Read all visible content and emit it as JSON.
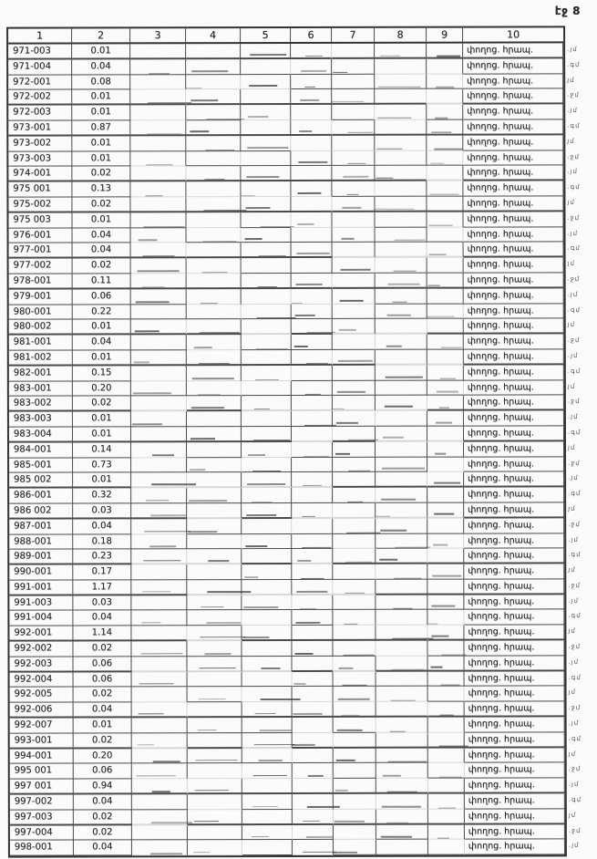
{
  "page_label": "էջ 8",
  "table": {
    "headers": [
      "1",
      "2",
      "3",
      "4",
      "5",
      "6",
      "7",
      "8",
      "9",
      "10"
    ],
    "rows": [
      {
        "code": "971-003",
        "value": "0.01",
        "note": "փողոց. հրապ.",
        "mark": ".յմ"
      },
      {
        "code": "971-004",
        "value": "0.04",
        "note": "փողոց. հրապ.",
        "mark": ".գմ"
      },
      {
        "code": "972-001",
        "value": "0.08",
        "note": "փողոց. հրապ.",
        "mark": "յմ"
      },
      {
        "code": "972-002",
        "value": "0.01",
        "note": "փողոց. հրապ.",
        "mark": ".ջմ"
      },
      {
        "code": "972-003",
        "value": "0.01",
        "note": "փողոց. հրապ.",
        "mark": ".յմ"
      },
      {
        "code": "973-001",
        "value": "0.87",
        "note": "փողոց. հրապ.",
        "mark": ".գմ"
      },
      {
        "code": "973-002",
        "value": "0.01",
        "note": "փողոց. հրապ.",
        "mark": "յմ"
      },
      {
        "code": "973-003",
        "value": "0.01",
        "note": "փողոց. հրապ.",
        "mark": ".ջմ"
      },
      {
        "code": "974-001",
        "value": "0.02",
        "note": "փողոց. հրապ.",
        "mark": ".յմ"
      },
      {
        "code": "975 001",
        "value": "0.13",
        "note": "փողոց. հրապ.",
        "mark": ".գմ"
      },
      {
        "code": "975-002",
        "value": "0.02",
        "note": "փողոց. հրապ.",
        "mark": "յմ"
      },
      {
        "code": "975 003",
        "value": "0.01",
        "note": "փողոց. հրապ.",
        "mark": ".ջմ"
      },
      {
        "code": "976-001",
        "value": "0.04",
        "note": "փողոց. հրապ.",
        "mark": ".յմ"
      },
      {
        "code": "977-001",
        "value": "0.04",
        "note": "փողոց. հրապ.",
        "mark": ".գմ"
      },
      {
        "code": "977-002",
        "value": "0.02",
        "note": "փողոց. հրապ.",
        "mark": "յմ"
      },
      {
        "code": "978-001",
        "value": "0.11",
        "note": "փողոց. հրապ.",
        "mark": ".ջմ"
      },
      {
        "code": "979-001",
        "value": "0.06",
        "note": "փողոց. հրապ.",
        "mark": ".յմ"
      },
      {
        "code": "980-001",
        "value": "0.22",
        "note": "փողոց. հրապ.",
        "mark": ".գմ"
      },
      {
        "code": "980-002",
        "value": "0.01",
        "note": "փողոց. հրապ.",
        "mark": "յմ"
      },
      {
        "code": "981-001",
        "value": "0.04",
        "note": "փողոց. հրապ.",
        "mark": ".ջմ"
      },
      {
        "code": "981-002",
        "value": "0.01",
        "note": "փողոց. հրապ.",
        "mark": ".յմ"
      },
      {
        "code": "982-001",
        "value": "0.15",
        "note": "փողոց. հրապ.",
        "mark": ".գմ"
      },
      {
        "code": "983-001",
        "value": "0.20",
        "note": "փողոց. հրապ.",
        "mark": "յմ"
      },
      {
        "code": "983-002",
        "value": "0.02",
        "note": "փողոց. հրապ.",
        "mark": ".ջմ"
      },
      {
        "code": "983-003",
        "value": "0.01",
        "note": "փողոց. հրապ.",
        "mark": ".յմ"
      },
      {
        "code": "983-004",
        "value": "0.01",
        "note": "փողոց. հրապ.",
        "mark": ".գմ"
      },
      {
        "code": "984-001",
        "value": "0.14",
        "note": "փողոց. հրապ.",
        "mark": "յմ"
      },
      {
        "code": "985-001",
        "value": "0.73",
        "note": "փողոց. հրապ.",
        "mark": ".ջմ"
      },
      {
        "code": "985 002",
        "value": "0.01",
        "note": "փողոց. հրապ.",
        "mark": ".յմ"
      },
      {
        "code": "986-001",
        "value": "0.32",
        "note": "փողոց. հրապ.",
        "mark": ".գմ"
      },
      {
        "code": "986 002",
        "value": "0.03",
        "note": "փողոց. հրապ.",
        "mark": "յմ"
      },
      {
        "code": "987-001",
        "value": "0.04",
        "note": "փողոց. հրապ.",
        "mark": ".ջմ"
      },
      {
        "code": "988-001",
        "value": "0.18",
        "note": "փողոց. հրապ.",
        "mark": ".յմ"
      },
      {
        "code": "989-001",
        "value": "0.23",
        "note": "փողոց. հրապ.",
        "mark": ".գմ"
      },
      {
        "code": "990-001",
        "value": "0.17",
        "note": "փողոց. հրապ.",
        "mark": "յմ"
      },
      {
        "code": "991-001",
        "value": "1.17",
        "note": "փողոց. հրապ.",
        "mark": ".ջմ"
      },
      {
        "code": "991-003",
        "value": "0.03",
        "note": "փողոց. հրապ.",
        "mark": ".յմ"
      },
      {
        "code": "991-004",
        "value": "0.04",
        "note": "փողոց. հրապ.",
        "mark": ".գմ"
      },
      {
        "code": "992-001",
        "value": "1.14",
        "note": "փողոց. հրապ.",
        "mark": "յմ"
      },
      {
        "code": "992-002",
        "value": "0.02",
        "note": "փողոց. հրապ.",
        "mark": ".ջմ"
      },
      {
        "code": "992-003",
        "value": "0.06",
        "note": "փողոց. հրապ.",
        "mark": ".յմ"
      },
      {
        "code": "992-004",
        "value": "0.06",
        "note": "փողոց. հրապ.",
        "mark": ".գմ"
      },
      {
        "code": "992-005",
        "value": "0.02",
        "note": "փողոց. հրապ.",
        "mark": "յմ"
      },
      {
        "code": "992-006",
        "value": "0.04",
        "note": "փողոց. հրապ.",
        "mark": ".ջմ"
      },
      {
        "code": "992-007",
        "value": "0.01",
        "note": "փողոց. հրապ.",
        "mark": ".յմ"
      },
      {
        "code": "993-001",
        "value": "0.02",
        "note": "փողոց. հրապ.",
        "mark": ".գմ"
      },
      {
        "code": "994-001",
        "value": "0.20",
        "note": "փողոց. հրապ.",
        "mark": "յմ"
      },
      {
        "code": "995 001",
        "value": "0.06",
        "note": "փողոց. հրապ.",
        "mark": ".ջմ"
      },
      {
        "code": "997 001",
        "value": "0.94",
        "note": "փողոց. հրապ.",
        "mark": ".յմ"
      },
      {
        "code": "997-002",
        "value": "0.04",
        "note": "փողոց. հրապ.",
        "mark": ".գմ"
      },
      {
        "code": "997-003",
        "value": "0.02",
        "note": "փողոց. հրապ.",
        "mark": "յմ"
      },
      {
        "code": "997-004",
        "value": "0.02",
        "note": "փողոց. հրապ.",
        "mark": ".ջմ"
      },
      {
        "code": "998-001",
        "value": "0.04",
        "note": "փողոց. հրապ.",
        "mark": ".յմ"
      }
    ]
  }
}
